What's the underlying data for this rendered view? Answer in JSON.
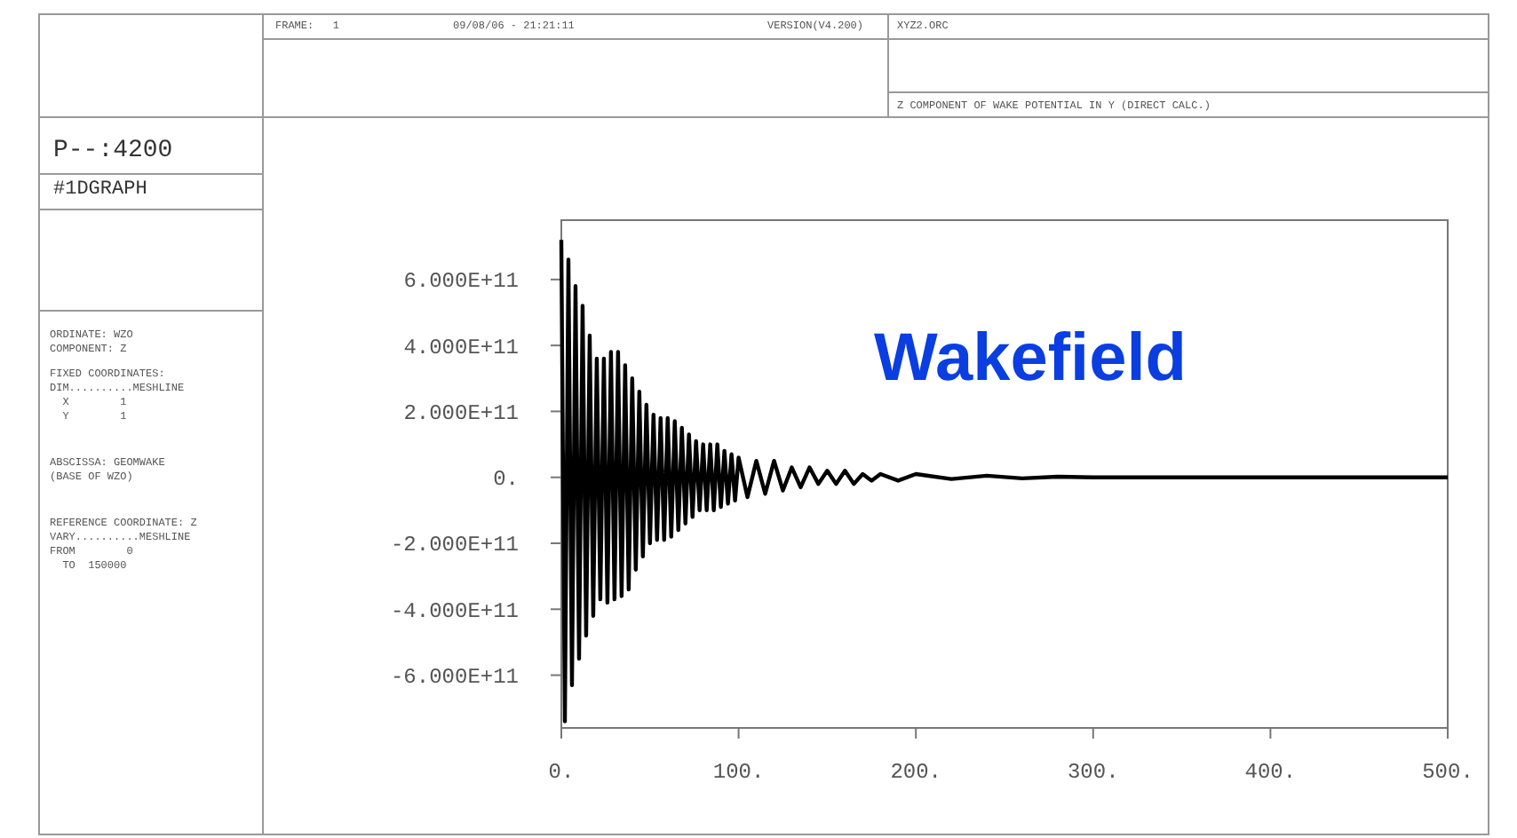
{
  "chart_data": {
    "type": "line",
    "title": "Wakefield",
    "subtitle": "Z COMPONENT OF WAKE POTENTIAL IN Y (DIRECT CALC.)",
    "annotations": [
      "P--:4200",
      "#1DGRAPH",
      "FRAME:   1",
      "09/08/06 - 21:21:11",
      "VERSION(V4.200)",
      "XYZ2.ORC",
      "ORDINATE: WZO",
      "COMPONENT: Z",
      "FIXED COORDINATES:",
      "DIM..........MESHLINE",
      "  X        1",
      "  Y        1",
      "ABSCISSA: GEOMWAKE",
      "(BASE OF WZO)",
      "REFERENCE COORDINATE: Z",
      "VARY..........MESHLINE",
      "FROM        0",
      "  TO  150000"
    ],
    "xlim": [
      0,
      500
    ],
    "xticks": [
      {
        "value": 0,
        "label": "0."
      },
      {
        "value": 100,
        "label": "100."
      },
      {
        "value": 200,
        "label": "200."
      },
      {
        "value": 300,
        "label": "300."
      },
      {
        "value": 400,
        "label": "400."
      },
      {
        "value": 500,
        "label": "500."
      }
    ],
    "ylim": [
      -760000000000.0,
      780000000000.0
    ],
    "yticks": [
      {
        "value": -600000000000.0,
        "label": "-6.000E+11"
      },
      {
        "value": -400000000000.0,
        "label": "-4.000E+11"
      },
      {
        "value": -200000000000.0,
        "label": "-2.000E+11"
      },
      {
        "value": 0,
        "label": "0."
      },
      {
        "value": 200000000000.0,
        "label": "2.000E+11"
      },
      {
        "value": 400000000000.0,
        "label": "4.000E+11"
      },
      {
        "value": 600000000000.0,
        "label": "6.000E+11"
      }
    ],
    "grid": false,
    "series": [
      {
        "color": "#000000",
        "x": [
          0,
          2,
          4,
          6,
          8,
          10,
          12,
          14,
          16,
          18,
          20,
          22,
          24,
          26,
          28,
          30,
          32,
          34,
          36,
          38,
          40,
          42,
          44,
          46,
          48,
          50,
          52,
          54,
          56,
          58,
          60,
          62,
          64,
          66,
          68,
          70,
          72,
          74,
          76,
          78,
          80,
          82,
          84,
          86,
          88,
          90,
          92,
          94,
          96,
          98,
          100,
          105,
          110,
          115,
          120,
          125,
          130,
          135,
          140,
          145,
          150,
          155,
          160,
          165,
          170,
          175,
          180,
          190,
          200,
          220,
          240,
          260,
          280,
          300,
          350,
          400,
          450,
          500
        ],
        "values": [
          720000000000.0,
          -740000000000.0,
          660000000000.0,
          -630000000000.0,
          580000000000.0,
          -550000000000.0,
          520000000000.0,
          -480000000000.0,
          430000000000.0,
          -420000000000.0,
          360000000000.0,
          -370000000000.0,
          360000000000.0,
          -380000000000.0,
          380000000000.0,
          -370000000000.0,
          380000000000.0,
          -360000000000.0,
          340000000000.0,
          -340000000000.0,
          300000000000.0,
          -280000000000.0,
          260000000000.0,
          -240000000000.0,
          220000000000.0,
          -200000000000.0,
          190000000000.0,
          -190000000000.0,
          180000000000.0,
          -190000000000.0,
          180000000000.0,
          -180000000000.0,
          170000000000.0,
          -160000000000.0,
          150000000000.0,
          -140000000000.0,
          130000000000.0,
          -120000000000.0,
          110000000000.0,
          -100000000000.0,
          100000000000.0,
          -100000000000.0,
          100000000000.0,
          -100000000000.0,
          100000000000.0,
          -90000000000.0,
          80000000000.0,
          -80000000000.0,
          70000000000.0,
          -70000000000.0,
          60000000000.0,
          -60000000000.0,
          50000000000.0,
          -50000000000.0,
          50000000000.0,
          -40000000000.0,
          30000000000.0,
          -30000000000.0,
          30000000000.0,
          -20000000000.0,
          20000000000.0,
          -20000000000.0,
          20000000000.0,
          -20000000000.0,
          10000000000.0,
          -10000000000.0,
          10000000000.0,
          -10000000000.0,
          10000000000.0,
          -5000000000.0,
          5000000000.0,
          -3000000000.0,
          2000000000.0,
          0,
          0,
          0,
          0,
          0
        ]
      }
    ]
  }
}
